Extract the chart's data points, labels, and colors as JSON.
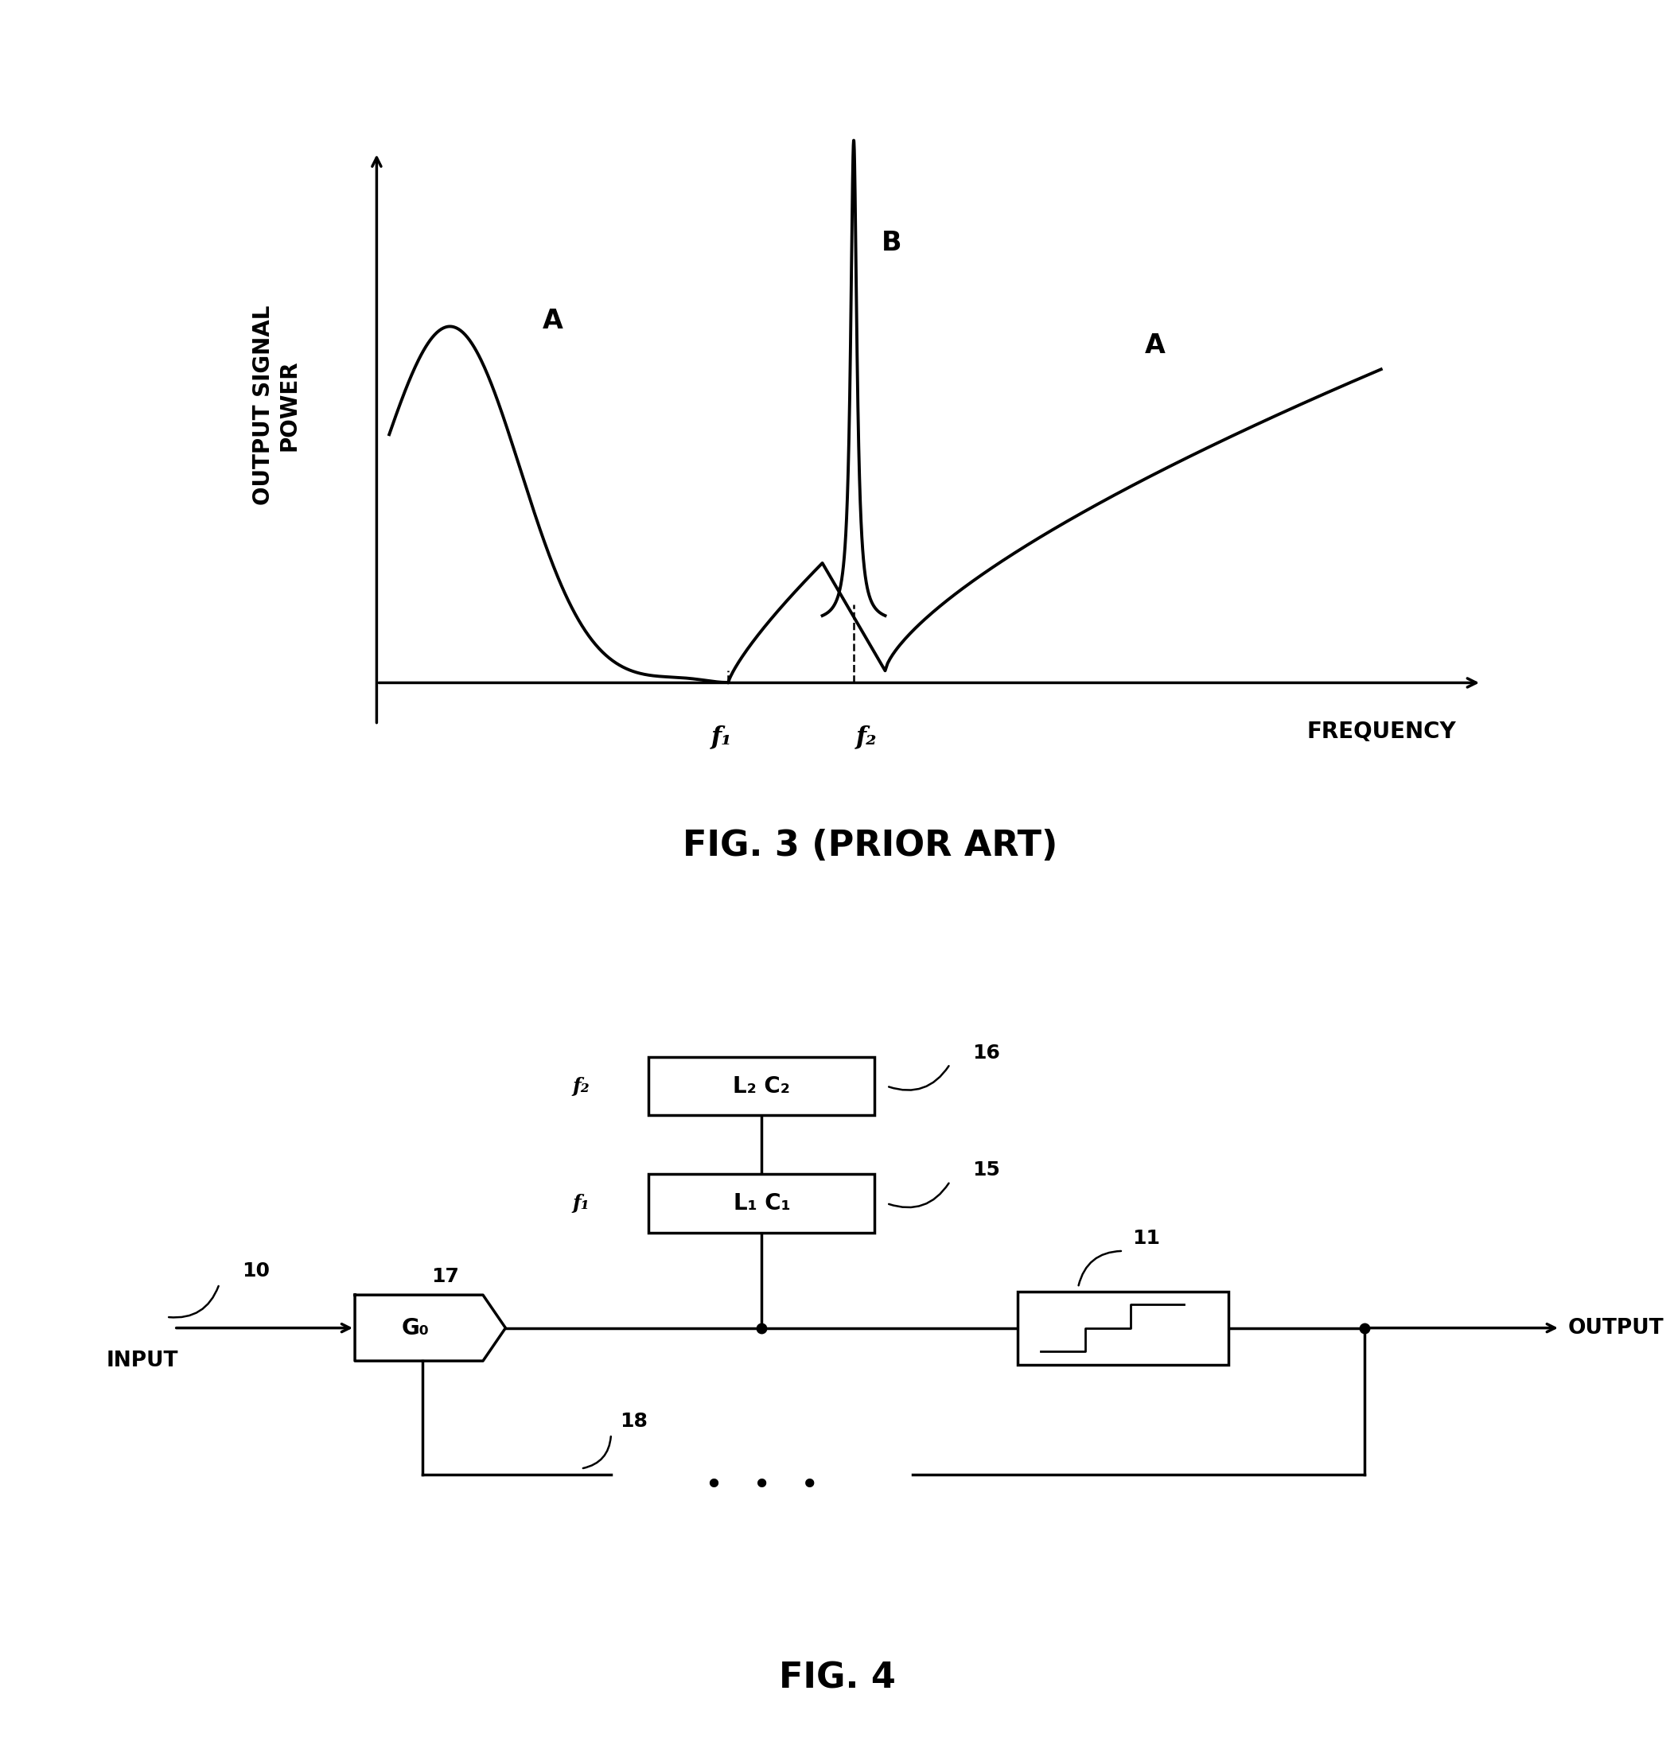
{
  "fig_width": 21.04,
  "fig_height": 21.94,
  "bg_color": "#ffffff",
  "fig3_title": "FIG. 3 (PRIOR ART)",
  "fig4_title": "FIG. 4",
  "ylabel": "OUTPUT SIGNAL\nPOWER",
  "xlabel": "FREQUENCY",
  "label_A1": "A",
  "label_A2": "A",
  "label_B": "B",
  "label_f1": "f₁",
  "label_f2": "f₂",
  "box_L2C2": "L₂ C₂",
  "box_L1C1": "L₁ C₁",
  "label_16": "16",
  "label_15": "15",
  "label_11": "11",
  "label_17": "17",
  "label_18": "18",
  "label_10": "10",
  "label_G0": "G₀",
  "label_f1_block": "f₁",
  "label_f2_block": "f₂",
  "label_INPUT": "INPUT",
  "label_OUTPUT": "OUTPUT"
}
